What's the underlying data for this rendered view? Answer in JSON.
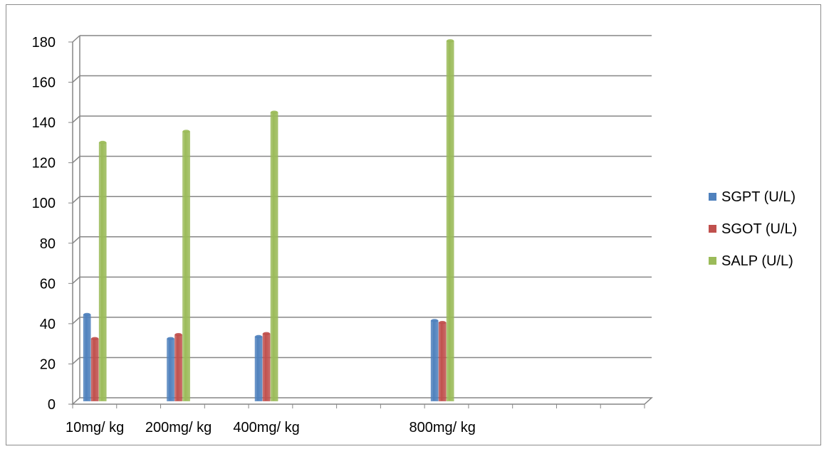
{
  "chart_data": {
    "type": "bar",
    "style": "3d-cylinder-clustered",
    "x": [
      10,
      200,
      400,
      800
    ],
    "categories": [
      "10mg/ kg",
      "200mg/ kg",
      "400mg/ kg",
      "800mg/ kg"
    ],
    "series": [
      {
        "name": "SGPT  (U/L)",
        "color": "#4f81bd",
        "values": [
          43,
          31,
          32,
          40
        ]
      },
      {
        "name": "SGOT (U/L)",
        "color": "#c0504d",
        "values": [
          31,
          33,
          33.5,
          39
        ]
      },
      {
        "name": "SALP  (U/L)",
        "color": "#9bbb59",
        "values": [
          128.5,
          134,
          143.5,
          179
        ]
      }
    ],
    "ylim": [
      0,
      180
    ],
    "yticks": [
      0,
      20,
      40,
      60,
      80,
      100,
      120,
      140,
      160,
      180
    ],
    "xlim": [
      0,
      1300
    ],
    "x_ticks": [
      0,
      100,
      200,
      300,
      400,
      500,
      600,
      700,
      800,
      900,
      1000,
      1100,
      1200,
      1300
    ],
    "grid": true,
    "legend_position": "right",
    "title": "",
    "xlabel": "",
    "ylabel": ""
  }
}
